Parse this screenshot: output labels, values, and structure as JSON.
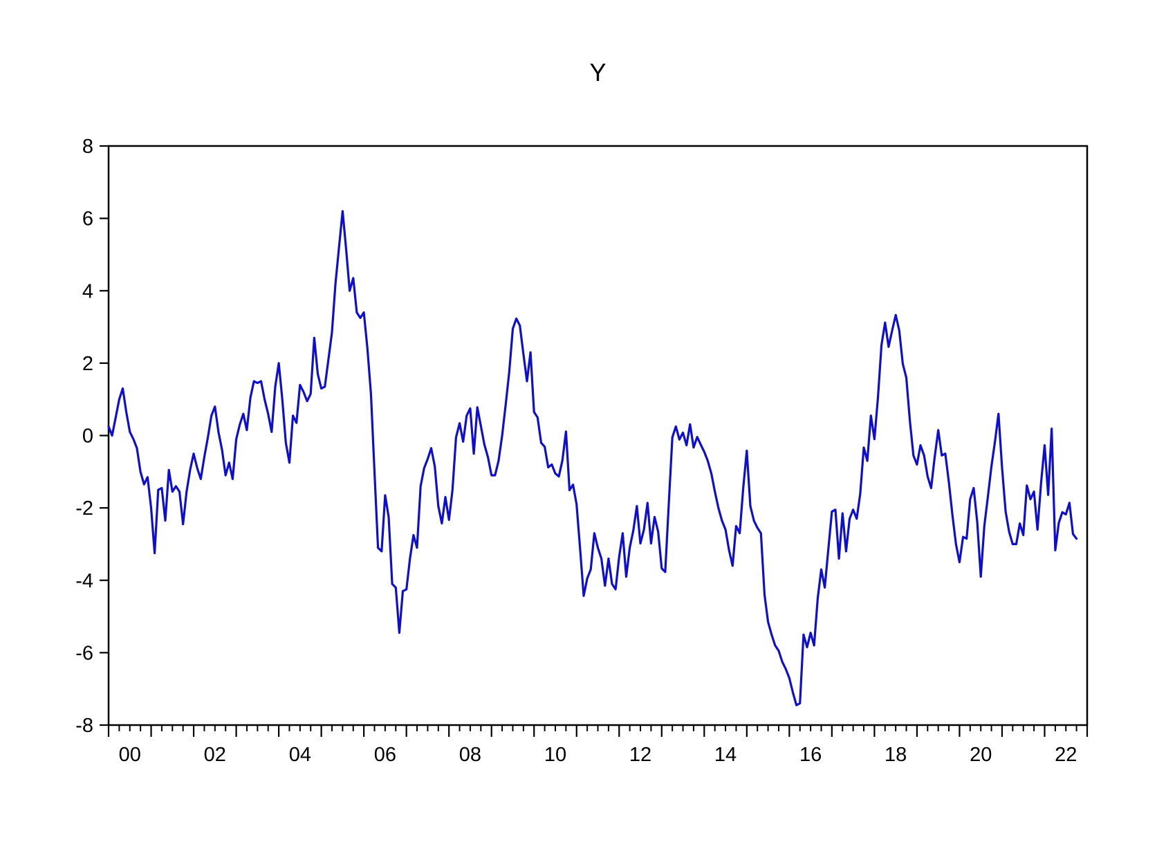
{
  "chart_data": {
    "type": "line",
    "title": "Y",
    "series_name": "Y",
    "line_color": "#0e0ed2",
    "axis_color": "#000000",
    "background": "#ffffff",
    "frequency": "monthly",
    "start_period": "2000M01",
    "end_period": "2022M10",
    "x_start_year": 2000,
    "x_span_years": 23,
    "months_span": 276,
    "minor_tick_months": 3,
    "ylim": [
      -8,
      8
    ],
    "yticks": [
      8,
      6,
      4,
      2,
      0,
      -2,
      -4,
      -6,
      -8
    ],
    "xtick_labels": [
      "00",
      "02",
      "04",
      "06",
      "08",
      "10",
      "12",
      "14",
      "16",
      "18",
      "20",
      "22"
    ],
    "xtick_label_years": [
      2000,
      2002,
      2004,
      2006,
      2008,
      2010,
      2012,
      2014,
      2016,
      2018,
      2020,
      2022
    ],
    "grid": false,
    "legend": "none",
    "values": [
      0.25,
      0.0,
      0.5,
      1.0,
      1.3,
      0.65,
      0.1,
      -0.1,
      -0.35,
      -1.0,
      -1.35,
      -1.15,
      -2.0,
      -3.25,
      -1.5,
      -1.45,
      -2.35,
      -0.95,
      -1.55,
      -1.4,
      -1.55,
      -2.45,
      -1.55,
      -0.95,
      -0.5,
      -0.9,
      -1.2,
      -0.6,
      -0.05,
      0.55,
      0.8,
      0.1,
      -0.4,
      -1.1,
      -0.75,
      -1.2,
      -0.1,
      0.3,
      0.6,
      0.15,
      1.05,
      1.5,
      1.45,
      1.5,
      1.0,
      0.6,
      0.1,
      1.35,
      2.0,
      1.0,
      -0.2,
      -0.75,
      0.55,
      0.35,
      1.4,
      1.2,
      0.95,
      1.15,
      2.7,
      1.7,
      1.3,
      1.35,
      2.1,
      2.85,
      4.2,
      5.2,
      6.2,
      5.15,
      4.0,
      4.35,
      3.4,
      3.25,
      3.4,
      2.4,
      1.15,
      -1.0,
      -3.1,
      -3.2,
      -1.65,
      -2.25,
      -4.1,
      -4.2,
      -5.45,
      -4.3,
      -4.25,
      -3.4,
      -2.75,
      -3.1,
      -1.4,
      -0.9,
      -0.65,
      -0.35,
      -0.85,
      -1.95,
      -2.43,
      -1.7,
      -2.33,
      -1.5,
      -0.05,
      0.34,
      -0.17,
      0.55,
      0.75,
      -0.5,
      0.78,
      0.27,
      -0.25,
      -0.6,
      -1.1,
      -1.1,
      -0.7,
      0.0,
      0.85,
      1.75,
      2.95,
      3.23,
      3.04,
      2.26,
      1.5,
      2.3,
      0.65,
      0.5,
      -0.2,
      -0.31,
      -0.88,
      -0.8,
      -1.05,
      -1.13,
      -0.69,
      0.11,
      -1.51,
      -1.36,
      -1.9,
      -3.15,
      -4.43,
      -3.95,
      -3.7,
      -2.7,
      -3.1,
      -3.4,
      -4.15,
      -3.4,
      -4.1,
      -4.25,
      -3.35,
      -2.7,
      -3.9,
      -3.1,
      -2.62,
      -1.95,
      -2.98,
      -2.6,
      -1.86,
      -2.98,
      -2.25,
      -2.66,
      -3.67,
      -3.77,
      -1.9,
      -0.05,
      0.25,
      -0.11,
      0.08,
      -0.27,
      0.31,
      -0.33,
      -0.04,
      -0.25,
      -0.45,
      -0.7,
      -1.05,
      -1.55,
      -2.0,
      -2.35,
      -2.6,
      -3.17,
      -3.6,
      -2.5,
      -2.7,
      -1.45,
      -0.42,
      -1.95,
      -2.35,
      -2.55,
      -2.7,
      -4.4,
      -5.15,
      -5.5,
      -5.8,
      -5.95,
      -6.25,
      -6.45,
      -6.7,
      -7.1,
      -7.45,
      -7.4,
      -5.5,
      -5.85,
      -5.45,
      -5.8,
      -4.5,
      -3.7,
      -4.2,
      -3.15,
      -2.1,
      -2.05,
      -3.4,
      -2.15,
      -3.2,
      -2.3,
      -2.05,
      -2.3,
      -1.6,
      -0.33,
      -0.7,
      0.55,
      -0.1,
      1.05,
      2.5,
      3.12,
      2.45,
      2.9,
      3.33,
      2.9,
      1.98,
      1.6,
      0.4,
      -0.55,
      -0.8,
      -0.27,
      -0.55,
      -1.13,
      -1.45,
      -0.6,
      0.15,
      -0.55,
      -0.5,
      -1.3,
      -2.2,
      -3.0,
      -3.5,
      -2.8,
      -2.85,
      -1.76,
      -1.45,
      -2.4,
      -3.9,
      -2.5,
      -1.7,
      -0.85,
      -0.17,
      0.6,
      -0.9,
      -2.1,
      -2.66,
      -3.0,
      -3.0,
      -2.43,
      -2.75,
      -1.38,
      -1.76,
      -1.55,
      -2.6,
      -1.3,
      -0.27,
      -1.64,
      0.19,
      -3.17,
      -2.41,
      -2.12,
      -2.18,
      -1.86,
      -2.72,
      -2.85
    ]
  }
}
